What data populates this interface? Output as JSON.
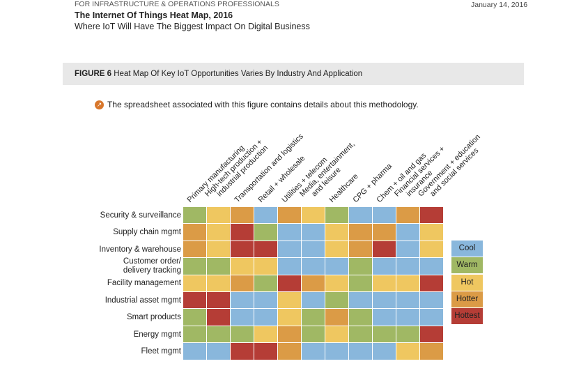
{
  "header": {
    "kicker": "FOR INFRASTRUCTURE & OPERATIONS PROFESSIONALS",
    "date": "January 14, 2016",
    "title": "The Internet Of Things Heat Map, 2016",
    "subtitle": "Where IoT Will Have The Biggest Impact On Digital Business"
  },
  "figure": {
    "number": "FIGURE 6",
    "caption": "Heat Map Of Key IoT Opportunities Varies By Industry And Application",
    "note": "The spreadsheet associated with this figure contains details about this methodology.",
    "note_icon": "spreadsheet-icon"
  },
  "chart_data": {
    "type": "heatmap",
    "title": "Heat Map Of Key IoT Opportunities Varies By Industry And Application",
    "columns": [
      "Primary manufacturing",
      "High-tech production +\nindustrial production",
      "Transportation and logistics",
      "Retail + wholesale",
      "Utilities + telecom",
      "Media, entertainment,\nand leisure",
      "Healthcare",
      "CPG + pharma",
      "Chem + oil and gas",
      "Financial services +\ninsurance",
      "Government + education\nand social services"
    ],
    "rows": [
      "Security & surveillance",
      "Supply chain mgmt",
      "Inventory & warehouse",
      "Customer order/\ndelivery tracking",
      "Facility management",
      "Industrial asset mgmt",
      "Smart products",
      "Energy mgmt",
      "Fleet mgmt"
    ],
    "scale": [
      "Cool",
      "Warm",
      "Hot",
      "Hotter",
      "Hottest"
    ],
    "colors": {
      "Cool": "#89b7dc",
      "Warm": "#a0b864",
      "Hot": "#efc760",
      "Hotter": "#db9b46",
      "Hottest": "#b53d36"
    },
    "legend_position": "right",
    "values": [
      [
        1,
        2,
        3,
        0,
        3,
        2,
        1,
        0,
        0,
        3,
        4
      ],
      [
        3,
        2,
        4,
        1,
        0,
        0,
        2,
        3,
        3,
        0,
        2
      ],
      [
        3,
        2,
        4,
        4,
        0,
        0,
        2,
        3,
        4,
        0,
        2
      ],
      [
        1,
        1,
        2,
        2,
        0,
        0,
        0,
        1,
        0,
        0,
        0
      ],
      [
        2,
        2,
        3,
        1,
        4,
        3,
        2,
        1,
        2,
        2,
        4
      ],
      [
        4,
        4,
        0,
        0,
        2,
        0,
        1,
        0,
        0,
        0,
        0
      ],
      [
        1,
        4,
        0,
        0,
        2,
        1,
        3,
        1,
        0,
        0,
        0
      ],
      [
        1,
        1,
        1,
        2,
        3,
        1,
        2,
        1,
        1,
        1,
        4
      ],
      [
        0,
        0,
        4,
        4,
        3,
        0,
        0,
        0,
        0,
        2,
        3
      ]
    ]
  }
}
